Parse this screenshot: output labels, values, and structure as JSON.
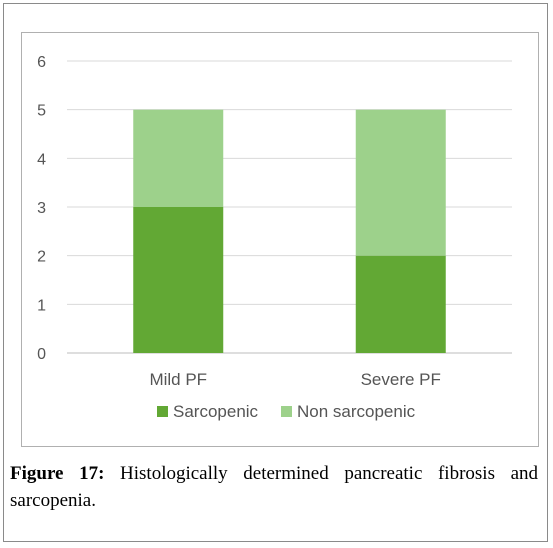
{
  "figure": {
    "label": "Figure 17:",
    "text": "Histologically determined pancreatic fibrosis and sarcopenia."
  },
  "chart_data": {
    "type": "bar",
    "stacked": true,
    "categories": [
      "Mild PF",
      "Severe PF"
    ],
    "series": [
      {
        "name": "Sarcopenic",
        "values": [
          3,
          2
        ],
        "color": "#62a834"
      },
      {
        "name": "Non sarcopenic",
        "values": [
          2,
          3
        ],
        "color": "#9dd18b"
      }
    ],
    "ylim": [
      0,
      6
    ],
    "yticks": [
      0,
      1,
      2,
      3,
      4,
      5,
      6
    ],
    "grid": true,
    "legend": "bottom",
    "title": "",
    "xlabel": "",
    "ylabel": ""
  }
}
